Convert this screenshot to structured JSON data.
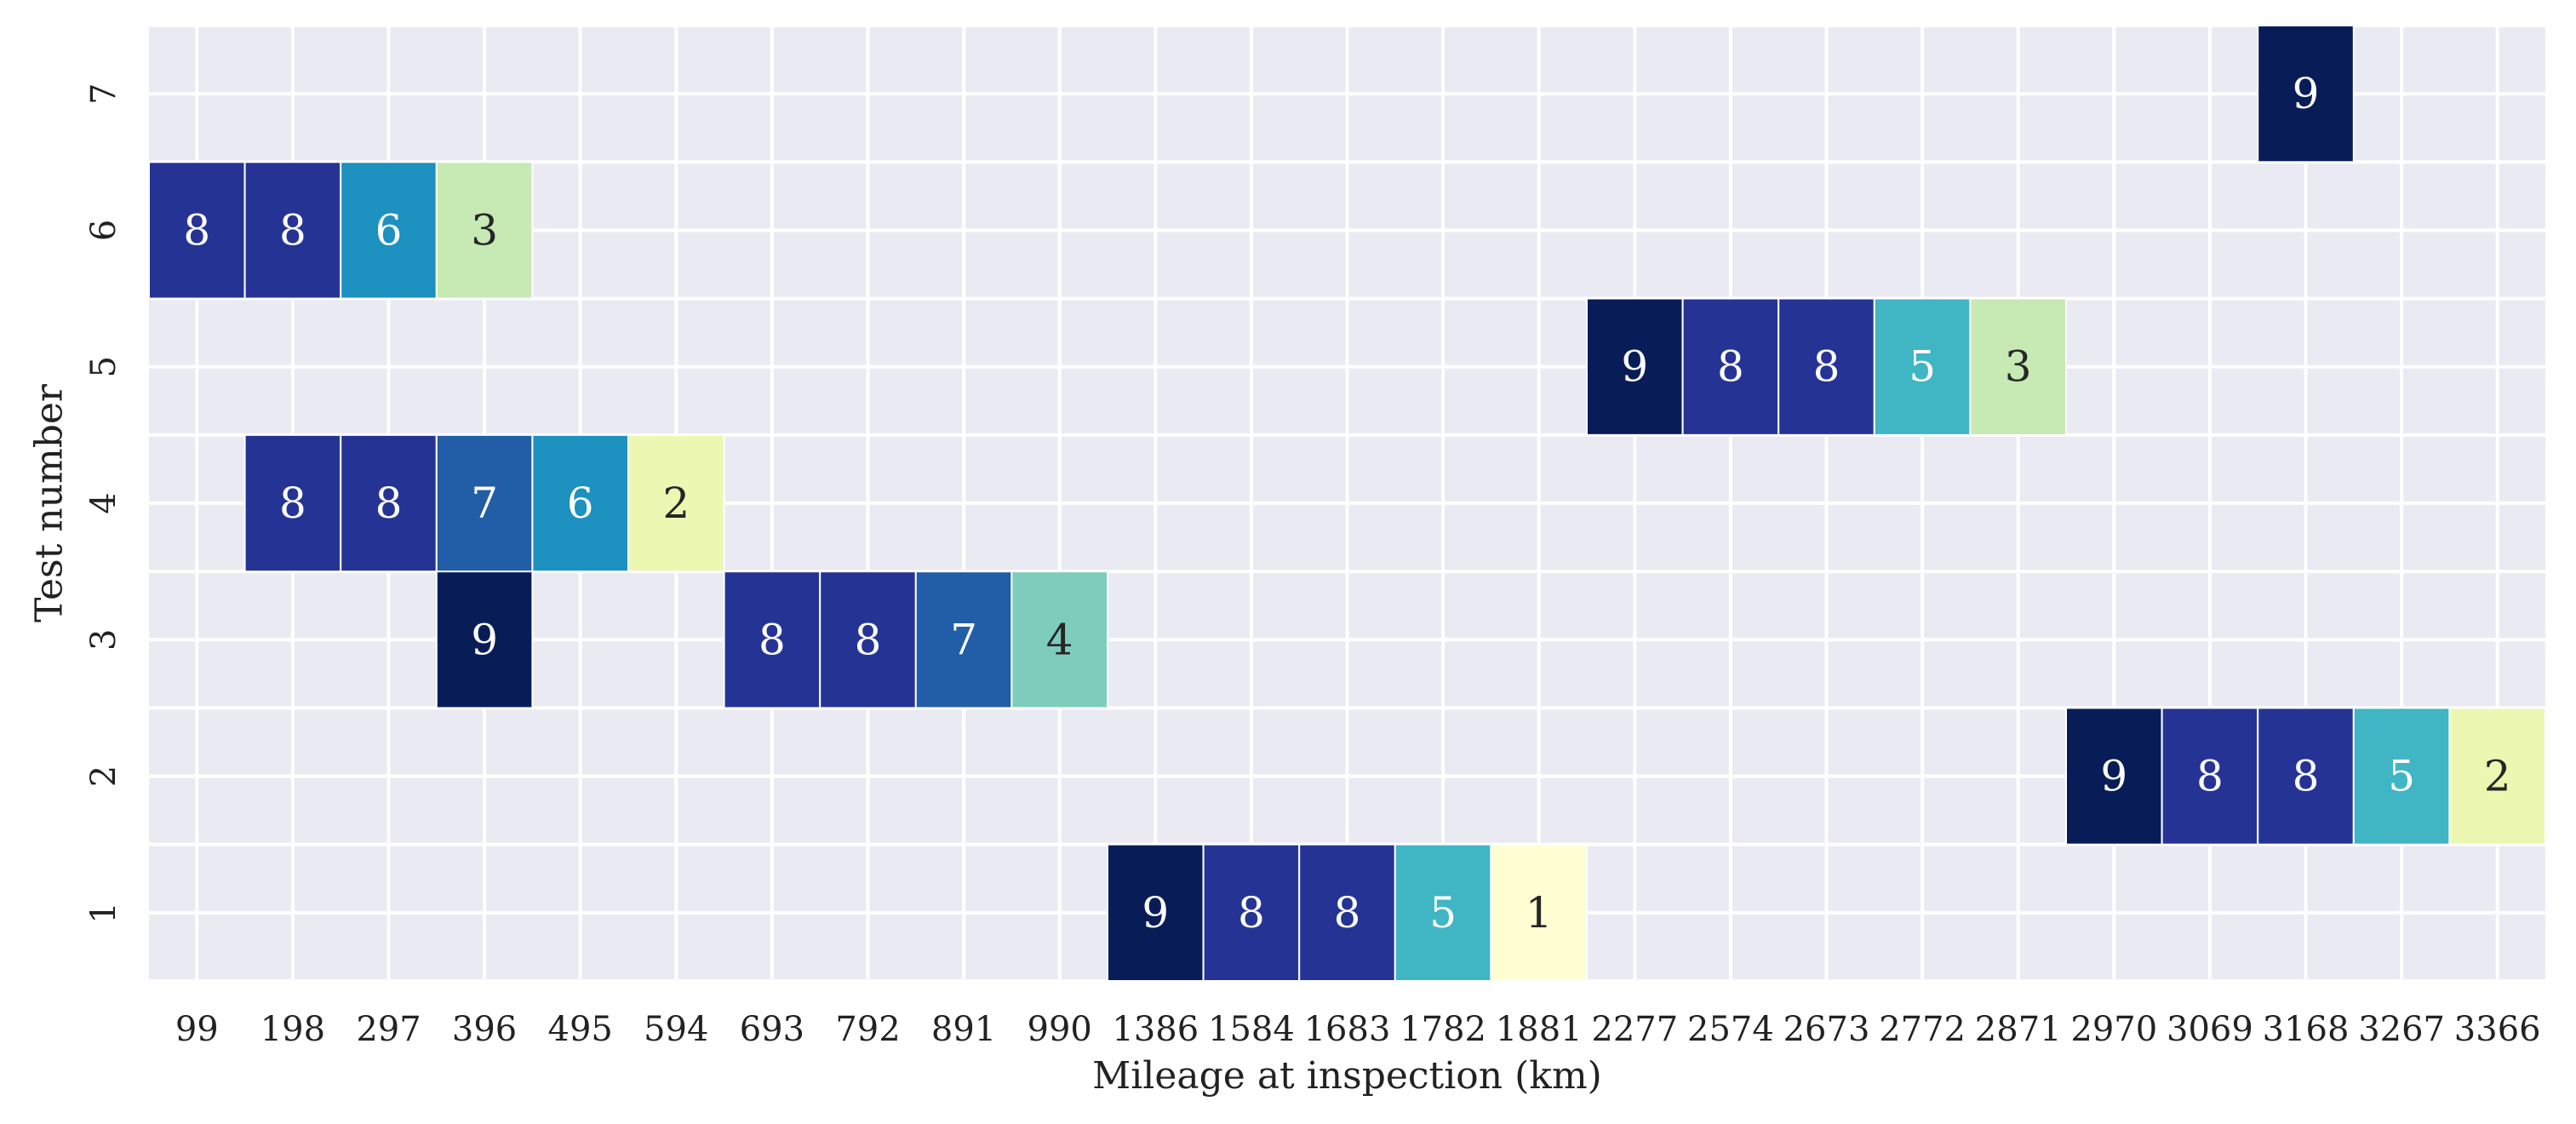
{
  "chart_data": {
    "type": "heatmap",
    "xlabel": "Mileage at inspection (km)",
    "ylabel": "Test number",
    "x_categories": [
      "99",
      "198",
      "297",
      "396",
      "495",
      "594",
      "693",
      "792",
      "891",
      "990",
      "1386",
      "1584",
      "1683",
      "1782",
      "1881",
      "2277",
      "2574",
      "2673",
      "2772",
      "2871",
      "2970",
      "3069",
      "3168",
      "3267",
      "3366"
    ],
    "y_categories": [
      "7",
      "6",
      "5",
      "4",
      "3",
      "2",
      "1"
    ],
    "cells": [
      {
        "test": "7",
        "x": "3168",
        "value": 9
      },
      {
        "test": "6",
        "x": "99",
        "value": 8
      },
      {
        "test": "6",
        "x": "198",
        "value": 8
      },
      {
        "test": "6",
        "x": "297",
        "value": 6
      },
      {
        "test": "6",
        "x": "396",
        "value": 3
      },
      {
        "test": "5",
        "x": "2277",
        "value": 9
      },
      {
        "test": "5",
        "x": "2574",
        "value": 8
      },
      {
        "test": "5",
        "x": "2673",
        "value": 8
      },
      {
        "test": "5",
        "x": "2772",
        "value": 5
      },
      {
        "test": "5",
        "x": "2871",
        "value": 3
      },
      {
        "test": "4",
        "x": "198",
        "value": 8
      },
      {
        "test": "4",
        "x": "297",
        "value": 8
      },
      {
        "test": "4",
        "x": "396",
        "value": 7
      },
      {
        "test": "4",
        "x": "495",
        "value": 6
      },
      {
        "test": "4",
        "x": "594",
        "value": 2
      },
      {
        "test": "3",
        "x": "396",
        "value": 9
      },
      {
        "test": "3",
        "x": "693",
        "value": 8
      },
      {
        "test": "3",
        "x": "792",
        "value": 8
      },
      {
        "test": "3",
        "x": "891",
        "value": 7
      },
      {
        "test": "3",
        "x": "990",
        "value": 4
      },
      {
        "test": "2",
        "x": "2970",
        "value": 9
      },
      {
        "test": "2",
        "x": "3069",
        "value": 8
      },
      {
        "test": "2",
        "x": "3168",
        "value": 8
      },
      {
        "test": "2",
        "x": "3267",
        "value": 5
      },
      {
        "test": "2",
        "x": "3366",
        "value": 2
      },
      {
        "test": "1",
        "x": "1386",
        "value": 9
      },
      {
        "test": "1",
        "x": "1584",
        "value": 8
      },
      {
        "test": "1",
        "x": "1683",
        "value": 8
      },
      {
        "test": "1",
        "x": "1782",
        "value": 5
      },
      {
        "test": "1",
        "x": "1881",
        "value": 1
      }
    ],
    "colorscale": "YlGnBu",
    "value_colors": {
      "1": "#fefed2",
      "2": "#ecf8b2",
      "3": "#c7e9b4",
      "4": "#7ecdbb",
      "5": "#40b5c4",
      "6": "#1d91c0",
      "7": "#225ea8",
      "8": "#253494",
      "9": "#081d58"
    },
    "background_color": "#eaeaf2",
    "grid": true,
    "grid_color": "#ffffff",
    "legend": "none"
  }
}
